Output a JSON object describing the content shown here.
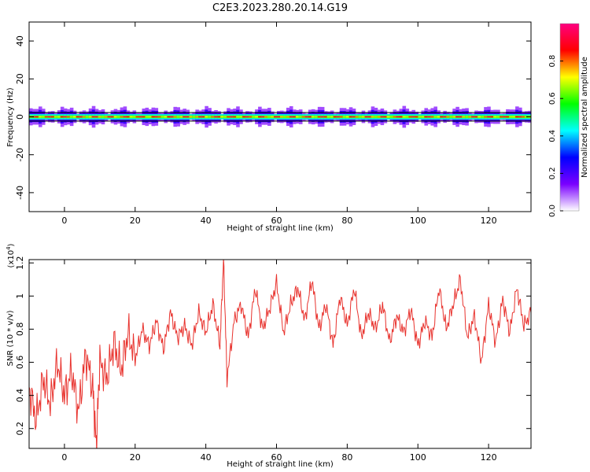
{
  "figure": {
    "title": "C2E3.2023.280.20.14.G19"
  },
  "chart_data": [
    {
      "type": "heatmap",
      "title": "C2E3.2023.280.20.14.G19",
      "xlabel": "Height of straight line (km)",
      "ylabel": "Frequency (Hz)",
      "xlim": [
        -10,
        132
      ],
      "ylim": [
        -50,
        50
      ],
      "xticks": [
        0,
        20,
        40,
        60,
        80,
        100,
        120
      ],
      "yticks": [
        40,
        20,
        0,
        -20,
        -40
      ],
      "band_center_hz": 0,
      "band_halfwidth_hz": 3,
      "colorbar": {
        "label": "Normalized spectral amplitude",
        "range": [
          0,
          1
        ],
        "ticks": [
          0.0,
          0.2,
          0.4,
          0.6,
          0.8
        ],
        "colormap": [
          "#ffffff",
          "#7a00ff",
          "#0000ff",
          "#00ffff",
          "#00ff00",
          "#ffff00",
          "#ff0000",
          "#ff0080"
        ]
      }
    },
    {
      "type": "line",
      "xlabel": "Height of straight line (km)",
      "ylabel": "SNR (10 * v/v)",
      "ylabel_multiplier": "(x10",
      "ylabel_multiplier_exp": "4",
      "ylabel_multiplier_close": ")",
      "xlim": [
        -10,
        132
      ],
      "ylim": [
        0.08,
        1.22
      ],
      "xticks": [
        0,
        20,
        40,
        60,
        80,
        100,
        120
      ],
      "yticks": [
        0.2,
        0.4,
        0.6,
        0.8,
        1.0,
        1.2
      ],
      "color": "#e8322d",
      "x": [
        -10,
        -8,
        -6,
        -4,
        -2,
        0,
        2,
        4,
        6,
        8,
        9,
        10,
        12,
        14,
        16,
        18,
        20,
        22,
        24,
        26,
        28,
        30,
        32,
        34,
        36,
        38,
        40,
        42,
        44,
        45,
        46,
        48,
        50,
        52,
        54,
        56,
        58,
        60,
        62,
        64,
        66,
        68,
        70,
        72,
        74,
        76,
        78,
        80,
        82,
        84,
        86,
        88,
        90,
        92,
        94,
        96,
        98,
        100,
        102,
        104,
        106,
        108,
        110,
        112,
        114,
        116,
        118,
        120,
        122,
        124,
        126,
        128,
        130,
        132
      ],
      "values": [
        0.45,
        0.25,
        0.5,
        0.35,
        0.6,
        0.4,
        0.55,
        0.3,
        0.65,
        0.45,
        0.1,
        0.6,
        0.5,
        0.72,
        0.55,
        0.78,
        0.62,
        0.8,
        0.7,
        0.85,
        0.68,
        0.9,
        0.75,
        0.82,
        0.7,
        0.9,
        0.78,
        0.95,
        0.7,
        1.22,
        0.5,
        0.85,
        0.95,
        0.75,
        1.05,
        0.8,
        0.92,
        1.08,
        0.78,
        0.95,
        1.05,
        0.85,
        1.1,
        0.8,
        0.95,
        0.7,
        1.0,
        0.82,
        1.05,
        0.75,
        0.9,
        0.8,
        0.95,
        0.72,
        0.88,
        0.78,
        0.92,
        0.7,
        0.85,
        0.75,
        1.05,
        0.8,
        0.95,
        1.1,
        0.75,
        0.88,
        0.6,
        0.95,
        0.72,
        0.98,
        0.78,
        1.05,
        0.82,
        0.9
      ]
    }
  ]
}
